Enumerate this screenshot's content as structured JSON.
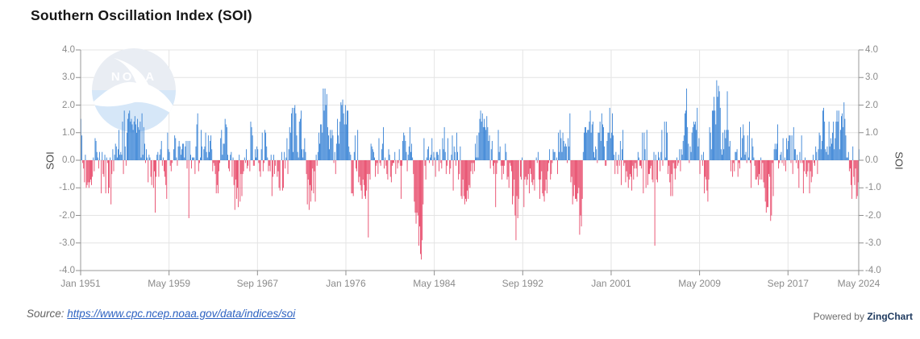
{
  "header": {
    "title": "Southern Oscillation Index (SOI)"
  },
  "watermark": {
    "name": "noaa-logo",
    "text": "NOAA"
  },
  "footer": {
    "source_prefix": "Source:",
    "source_url": "https://www.cpc.ncep.noaa.gov/data/indices/soi",
    "powered_prefix": "Powered by",
    "powered_brand": "ZingChart"
  },
  "colors": {
    "positive_bar": "#2d7cd3",
    "negative_bar": "#e63c5f",
    "grid": "#e4e4e4",
    "axis": "#9a9a9a",
    "tick": "#8f8f8f",
    "tick_label": "#8b8b8b",
    "title": "#161616",
    "link": "#2d62c1",
    "source_text": "#626262",
    "brand": "#1e3a5f",
    "wm_top": "#e9edf3",
    "wm_bottom": "#d6e7f8"
  },
  "chart_data": {
    "type": "bar",
    "title": "Southern Oscillation Index (SOI)",
    "xlabel": "",
    "ylabel_left": "SOI",
    "ylabel_right": "SOI",
    "ylim": [
      -4.0,
      4.0
    ],
    "grid": true,
    "legend": "none",
    "y_ticks": [
      4,
      3,
      2,
      1,
      0,
      -1,
      -2,
      -3,
      -4
    ],
    "y_tick_labels": [
      "4.0",
      "3.0",
      "2.0",
      "1.0",
      "0.0",
      "-1.0",
      "-2.0",
      "-3.0",
      "-4.0"
    ],
    "x_tick_labels": [
      "Jan 1951",
      "May 1959",
      "Sep 1967",
      "Jan 1976",
      "May 1984",
      "Sep 1992",
      "Jan 2001",
      "May 2009",
      "Sep 2017",
      "May 2024"
    ],
    "x_tick_months": [
      0,
      100,
      200,
      300,
      400,
      500,
      600,
      700,
      800,
      880
    ],
    "x_start": "Jan 1951",
    "x_end": "May 2024",
    "x_resolution": "monthly",
    "series": [
      {
        "name": "SOI",
        "start_year": 1951,
        "start_month": 1,
        "values": [
          1.5,
          0.9,
          -0.1,
          -0.3,
          -0.8,
          0.2,
          -1.0,
          -0.9,
          -0.8,
          -1.0,
          -0.8,
          -0.7,
          -0.9,
          -0.6,
          0.1,
          -0.4,
          0.8,
          0.7,
          0.3,
          0.1,
          -0.3,
          0.3,
          0.0,
          -1.2,
          0.3,
          -0.5,
          -0.6,
          0.2,
          -1.2,
          0.1,
          -0.1,
          -1.2,
          -1.0,
          0.1,
          -1.6,
          -0.5,
          0.4,
          -0.4,
          0.2,
          0.6,
          0.5,
          0.1,
          0.4,
          1.1,
          0.2,
          0.3,
          0.2,
          1.4,
          -0.5,
          1.8,
          0.5,
          -0.2,
          1.0,
          1.5,
          1.7,
          1.8,
          1.4,
          1.5,
          1.3,
          1.1,
          1.4,
          1.6,
          1.3,
          1.0,
          1.5,
          1.2,
          1.1,
          1.4,
          0.1,
          1.7,
          0.2,
          1.2,
          0.6,
          -0.1,
          0.4,
          0.1,
          -0.8,
          0.2,
          0.1,
          -0.6,
          -0.9,
          0.0,
          -1.0,
          -0.4,
          -1.9,
          -0.6,
          0.2,
          0.3,
          -0.6,
          0.2,
          0.4,
          0.7,
          -0.2,
          0.1,
          -0.4,
          -0.6,
          -0.9,
          -1.4,
          1.0,
          0.4,
          0.3,
          -0.2,
          -0.4,
          -0.1,
          0.0,
          0.4,
          0.9,
          0.8,
          0.1,
          -0.2,
          0.5,
          0.7,
          0.5,
          0.2,
          0.4,
          0.6,
          0.6,
          0.1,
          0.5,
          0.7,
          -0.3,
          0.7,
          -2.1,
          0.7,
          0.2,
          -0.3,
          0.1,
          0.1,
          0.1,
          -0.5,
          0.5,
          1.3,
          1.7,
          -0.4,
          -0.1,
          0.1,
          1.1,
          0.5,
          0.0,
          0.4,
          0.5,
          1.0,
          0.3,
          0.1,
          0.9,
          0.3,
          0.7,
          0.9,
          0.4,
          -0.4,
          -0.1,
          -0.2,
          -0.5,
          -1.2,
          -0.9,
          -1.2,
          -0.4,
          -0.1,
          0.8,
          1.1,
          0.2,
          0.6,
          0.6,
          1.5,
          1.3,
          1.2,
          0.2,
          -0.3,
          -0.4,
          0.2,
          0.3,
          -0.6,
          0.1,
          -0.9,
          -1.8,
          -0.7,
          -1.4,
          -1.0,
          -1.7,
          0.2,
          -1.5,
          -0.5,
          -1.3,
          -0.5,
          -0.4,
          0.1,
          -0.1,
          0.4,
          -0.3,
          -0.2,
          0.0,
          -0.4,
          1.4,
          1.2,
          0.9,
          -0.2,
          -0.2,
          0.4,
          0.1,
          0.5,
          0.4,
          -0.1,
          -0.4,
          -0.6,
          0.4,
          1.0,
          -0.4,
          -0.1,
          1.1,
          1.0,
          0.5,
          0.1,
          -0.4,
          -0.2,
          -0.4,
          0.2,
          -1.3,
          -0.6,
          0.2,
          -0.5,
          -0.2,
          0.0,
          -0.6,
          -0.4,
          -1.0,
          -1.1,
          0.0,
          0.3,
          -1.1,
          -1.0,
          0.3,
          -0.3,
          0.1,
          0.8,
          -0.5,
          0.4,
          1.2,
          1.0,
          1.7,
          1.9,
          0.3,
          1.9,
          2.0,
          1.7,
          0.9,
          0.3,
          0.1,
          1.4,
          1.5,
          1.8,
          0.4,
          0.1,
          0.4,
          0.8,
          0.3,
          -0.5,
          -1.6,
          -0.7,
          -1.8,
          -0.9,
          -1.5,
          -1.1,
          -0.3,
          -1.2,
          -0.4,
          -1.5,
          0.2,
          -0.2,
          0.3,
          1.0,
          0.6,
          1.3,
          1.3,
          1.0,
          2.6,
          1.8,
          2.6,
          2.0,
          2.4,
          1.2,
          0.9,
          0.4,
          1.1,
          0.8,
          1.1,
          0.9,
          -0.1,
          0.3,
          -0.5,
          0.6,
          1.5,
          0.9,
          0.6,
          1.4,
          2.1,
          2.0,
          2.2,
          1.7,
          1.3,
          2.0,
          1.3,
          1.8,
          1.8,
          0.5,
          0.3,
          0.2,
          -1.2,
          -1.2,
          -1.3,
          0.3,
          0.9,
          -0.3,
          -0.4,
          1.1,
          -0.8,
          -0.6,
          -0.9,
          -1.1,
          -1.4,
          -0.7,
          -0.9,
          -1.3,
          -1.4,
          -1.1,
          -0.5,
          -2.8,
          -0.5,
          -0.7,
          0.6,
          0.5,
          0.4,
          0.3,
          0.1,
          -0.6,
          -0.2,
          -0.1,
          -0.5,
          0.8,
          -0.1,
          -0.2,
          0.4,
          0.6,
          1.2,
          -0.3,
          0.1,
          -0.2,
          -0.5,
          -0.7,
          0.4,
          0.2,
          -0.6,
          -0.8,
          -0.2,
          -0.1,
          -0.1,
          0.3,
          -0.5,
          0.0,
          -0.3,
          -0.1,
          0.4,
          -0.2,
          -1.4,
          -0.2,
          0.7,
          1.0,
          0.9,
          0.7,
          0.3,
          -0.4,
          0.2,
          0.5,
          1.2,
          0.3,
          0.6,
          0.1,
          -0.5,
          -1.5,
          -1.9,
          -2.3,
          -1.9,
          -2.0,
          -3.1,
          -2.4,
          -3.4,
          -3.6,
          -2.9,
          -1.6,
          0.8,
          -0.2,
          -0.7,
          0.1,
          0.4,
          0.5,
          -0.1,
          0.1,
          0.2,
          0.8,
          -0.2,
          0.3,
          0.1,
          -0.6,
          0.3,
          0.3,
          0.2,
          -0.4,
          0.4,
          -0.1,
          -0.3,
          0.8,
          0.4,
          1.2,
          0.3,
          -0.5,
          -0.2,
          0.8,
          0.0,
          -0.5,
          -0.3,
          0.2,
          0.9,
          -1.1,
          0.5,
          0.3,
          -0.2,
          1.0,
          0.3,
          -0.7,
          -0.5,
          0.5,
          -1.3,
          -1.4,
          -0.7,
          -1.3,
          -1.6,
          -1.4,
          -1.5,
          -1.1,
          -1.4,
          -0.9,
          -1.0,
          -0.4,
          -0.1,
          -0.5,
          -0.1,
          -0.4,
          0.6,
          0.1,
          0.9,
          0.1,
          1.0,
          1.5,
          1.8,
          1.4,
          1.7,
          1.2,
          1.5,
          1.2,
          1.1,
          1.6,
          1.2,
          0.7,
          0.9,
          -0.3,
          0.4,
          0.7,
          -0.2,
          -0.5,
          -0.1,
          -1.7,
          -0.5,
          -0.1,
          1.1,
          0.3,
          0.5,
          -0.2,
          -0.7,
          -0.2,
          -0.5,
          -0.2,
          0.6,
          0.3,
          -0.7,
          -0.6,
          -1.0,
          -0.1,
          -0.2,
          -0.4,
          -1.6,
          -1.3,
          -0.7,
          -2.0,
          -2.9,
          -1.3,
          -2.1,
          -1.4,
          0.0,
          -0.6,
          -0.7,
          0.1,
          0.0,
          -1.7,
          -0.7,
          -0.6,
          -0.9,
          -0.7,
          -0.5,
          -1.2,
          -0.3,
          -0.5,
          -0.8,
          -0.9,
          -0.7,
          -1.1,
          0.0,
          0.1,
          -0.1,
          0.3,
          -0.7,
          -1.4,
          -0.7,
          -0.4,
          -1.2,
          -1.3,
          -1.5,
          -1.1,
          -0.7,
          -1.2,
          -0.4,
          -0.1,
          0.4,
          -0.7,
          -0.5,
          -0.1,
          0.4,
          0.3,
          0.3,
          0.0,
          0.1,
          -0.5,
          1.0,
          0.3,
          1.1,
          0.8,
          0.3,
          1.0,
          0.7,
          0.5,
          0.6,
          0.5,
          -0.1,
          0.8,
          0.5,
          1.7,
          -0.8,
          -0.6,
          -1.6,
          -1.3,
          -0.9,
          -1.4,
          -1.4,
          -1.5,
          -1.2,
          -1.0,
          -2.7,
          -2.0,
          -2.4,
          -1.4,
          0.3,
          1.0,
          1.2,
          1.2,
          1.0,
          1.1,
          1.1,
          1.4,
          1.8,
          1.0,
          1.3,
          1.4,
          0.3,
          0.1,
          0.5,
          0.4,
          -0.1,
          1.0,
          1.0,
          1.4,
          0.7,
          1.7,
          1.3,
          1.2,
          0.5,
          -0.2,
          -0.2,
          0.7,
          1.0,
          1.0,
          1.9,
          0.8,
          1.0,
          1.7,
          0.9,
          0.2,
          -0.5,
          0.3,
          -0.2,
          -0.5,
          0.2,
          -0.2,
          0.7,
          -0.9,
          0.4,
          1.1,
          -0.2,
          -0.1,
          -0.8,
          -0.4,
          -0.6,
          -1.0,
          -0.7,
          -0.5,
          -0.6,
          -1.1,
          -0.2,
          -0.7,
          -0.3,
          -0.1,
          -0.3,
          -0.6,
          0.3,
          0.1,
          -0.2,
          -0.2,
          -0.3,
          1.0,
          -1.2,
          1.0,
          0.4,
          -1.0,
          1.1,
          -0.9,
          -0.5,
          -0.5,
          -0.3,
          -0.2,
          -0.7,
          -0.8,
          0.3,
          -3.1,
          0.2,
          -0.7,
          -0.8,
          0.3,
          0.1,
          -0.4,
          0.3,
          1.1,
          -0.2,
          0.0,
          1.4,
          0.1,
          1.4,
          1.0,
          -0.5,
          -0.2,
          -0.8,
          -1.3,
          -0.5,
          -1.3,
          -0.1,
          -0.3,
          -0.7,
          -0.3,
          0.1,
          -0.2,
          -0.1,
          0.4,
          -0.4,
          0.4,
          0.2,
          0.7,
          0.9,
          1.7,
          1.8,
          2.6,
          1.2,
          0.6,
          -0.1,
          0.5,
          0.3,
          1.0,
          1.2,
          1.4,
          1.3,
          1.4,
          1.1,
          1.9,
          0.5,
          0.8,
          -0.5,
          0.0,
          0.2,
          -0.2,
          0.3,
          -1.2,
          -0.6,
          -0.7,
          -1.1,
          -1.5,
          -0.7,
          1.2,
          1.0,
          0.4,
          1.8,
          1.8,
          2.3,
          1.8,
          1.3,
          2.9,
          2.3,
          2.7,
          2.5,
          1.9,
          0.4,
          0.2,
          1.0,
          0.4,
          1.1,
          0.8,
          1.1,
          2.5,
          1.1,
          0.5,
          0.7,
          -0.4,
          0.0,
          -0.6,
          -0.1,
          -0.4,
          0.3,
          0.3,
          0.4,
          -0.6,
          -0.1,
          -0.3,
          1.2,
          0.1,
          0.8,
          1.3,
          0.9,
          0.2,
          0.3,
          -0.1,
          0.9,
          0.1,
          1.4,
          -0.1,
          -1.0,
          0.8,
          0.5,
          0.1,
          -0.2,
          -0.7,
          -0.7,
          -0.6,
          -0.9,
          -0.5,
          -0.7,
          0.1,
          -0.7,
          -0.1,
          -0.8,
          -1.0,
          -1.5,
          -1.9,
          -1.7,
          -1.7,
          -0.5,
          -0.6,
          -2.2,
          -2.0,
          -0.1,
          -1.3,
          0.4,
          0.6,
          0.4,
          0.6,
          1.3,
          -0.3,
          -0.1,
          0.2,
          0.3,
          -0.1,
          0.8,
          -0.2,
          0.1,
          -0.4,
          0.8,
          0.4,
          0.7,
          0.9,
          0.9,
          -0.1,
          0.9,
          -0.5,
          1.2,
          0.4,
          0.4,
          -0.1,
          0.2,
          -0.3,
          -1.0,
          0.3,
          -0.1,
          0.9,
          -0.1,
          -1.2,
          -0.4,
          0.1,
          -0.5,
          -0.6,
          -0.4,
          -0.1,
          -1.2,
          -0.4,
          -0.8,
          -0.6,
          0.2,
          -0.1,
          -0.2,
          0.5,
          0.3,
          -0.5,
          0.4,
          1.0,
          0.9,
          0.4,
          0.7,
          1.8,
          1.9,
          1.4,
          0.4,
          0.3,
          0.5,
          0.2,
          1.4,
          0.5,
          0.8,
          0.6,
          1.0,
          1.4,
          0.4,
          0.8,
          1.4,
          1.8,
          1.4,
          1.8,
          0.4,
          1.1,
          1.6,
          1.7,
          1.2,
          2.1,
          1.5,
          0.9,
          0.1,
          0.1,
          0.3,
          -0.4,
          -0.3,
          -0.9,
          -1.4,
          0.5,
          -0.6,
          -0.9,
          -0.3,
          -1.4,
          -1.3,
          -0.8,
          0.4
        ]
      }
    ]
  }
}
